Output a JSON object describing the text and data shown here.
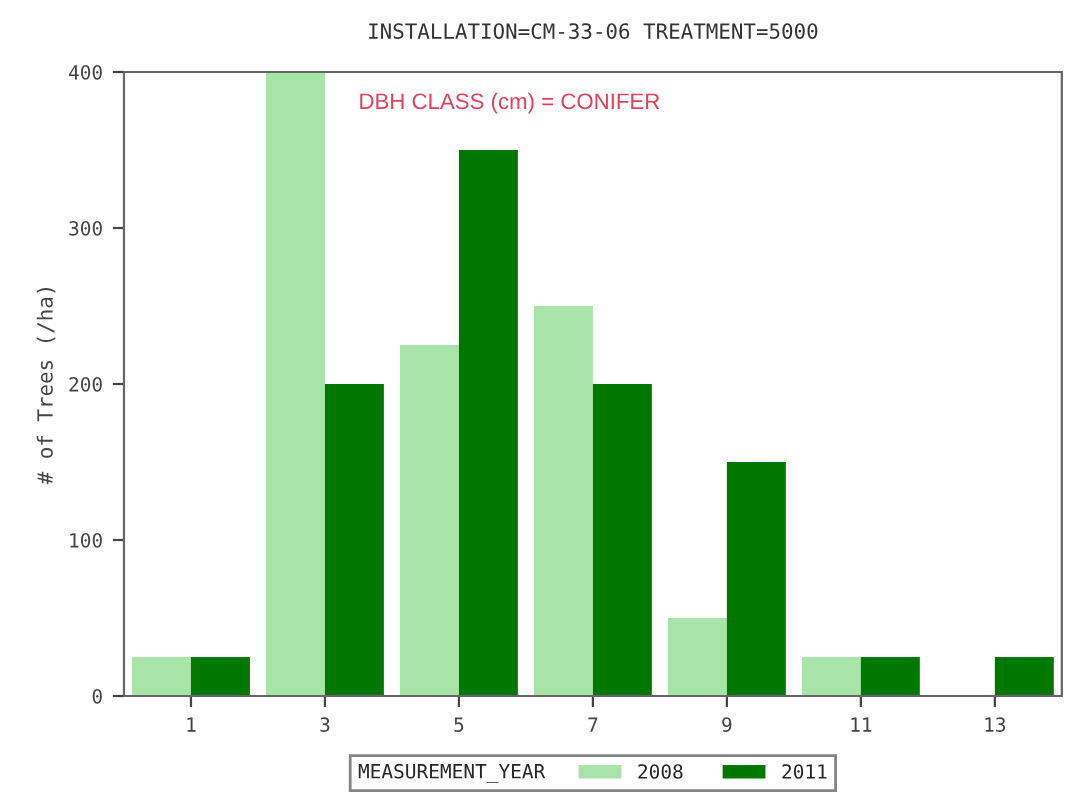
{
  "chart_data": {
    "type": "bar",
    "title": "INSTALLATION=CM-33-06 TREATMENT=5000",
    "ylabel": "# of Trees (/ha)",
    "legend_title": "MEASUREMENT_YEAR",
    "annotations": [
      "DBH CLASS (cm) = CONIFER"
    ],
    "categories": [
      "1",
      "3",
      "5",
      "7",
      "9",
      "11",
      "13"
    ],
    "series": [
      {
        "name": "2008",
        "color": "#a8e4a8",
        "values": [
          25,
          400,
          225,
          250,
          50,
          25,
          null
        ]
      },
      {
        "name": "2011",
        "color": "#007800",
        "values": [
          25,
          200,
          350,
          200,
          150,
          25,
          25
        ]
      }
    ],
    "ylim": [
      0,
      400
    ],
    "yticks": [
      0,
      100,
      200,
      300,
      400
    ],
    "grid": false,
    "legend": "bottom"
  }
}
